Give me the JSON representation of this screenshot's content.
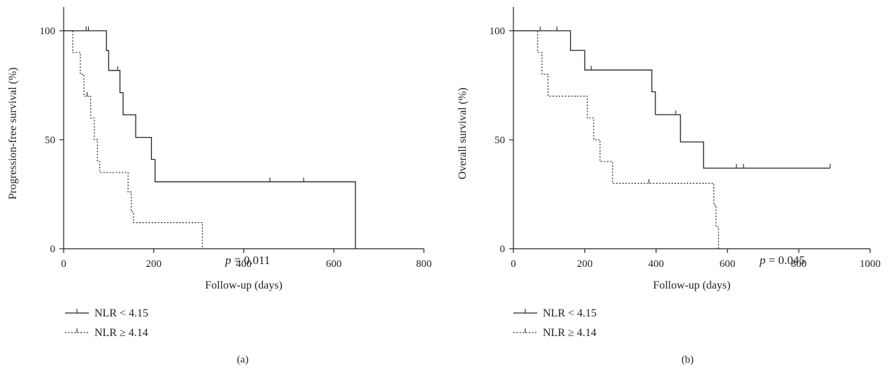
{
  "chart_data": [
    {
      "type": "line",
      "panel_label": "(a)",
      "xlabel": "Follow-up (days)",
      "ylabel": "Progression-free survival (%)",
      "xlim": [
        0,
        800
      ],
      "ylim": [
        0,
        100
      ],
      "xticks": [
        0,
        200,
        400,
        600,
        800
      ],
      "yticks": [
        0,
        50,
        100
      ],
      "annotation": {
        "italic": "p",
        "rest": " = 0.011"
      },
      "series": [
        {
          "name": "NLR < 4.15",
          "style": "solid",
          "steps": [
            [
              0,
              100
            ],
            [
              95,
              100
            ],
            [
              95,
              90.9
            ],
            [
              100,
              90.9
            ],
            [
              100,
              81.8
            ],
            [
              125,
              81.8
            ],
            [
              125,
              71.6
            ],
            [
              132,
              71.6
            ],
            [
              132,
              61.4
            ],
            [
              160,
              61.4
            ],
            [
              160,
              51.1
            ],
            [
              195,
              51.1
            ],
            [
              195,
              40.9
            ],
            [
              203,
              40.9
            ],
            [
              203,
              30.7
            ],
            [
              648,
              30.7
            ],
            [
              648,
              0
            ]
          ],
          "censored": [
            [
              50,
              100
            ],
            [
              55,
              100
            ],
            [
              120,
              81.8
            ],
            [
              458,
              30.7
            ],
            [
              533,
              30.7
            ]
          ]
        },
        {
          "name": "NLR ≥ 4.14",
          "style": "dotted",
          "steps": [
            [
              0,
              100
            ],
            [
              20,
              100
            ],
            [
              20,
              90
            ],
            [
              37,
              90
            ],
            [
              37,
              80
            ],
            [
              45,
              80
            ],
            [
              45,
              70
            ],
            [
              60,
              70
            ],
            [
              60,
              60
            ],
            [
              68,
              60
            ],
            [
              68,
              50
            ],
            [
              75,
              50
            ],
            [
              75,
              40
            ],
            [
              80,
              40
            ],
            [
              80,
              35
            ],
            [
              143,
              35
            ],
            [
              143,
              26
            ],
            [
              150,
              26
            ],
            [
              150,
              17
            ],
            [
              155,
              17
            ],
            [
              155,
              12
            ],
            [
              308,
              12
            ],
            [
              308,
              0
            ]
          ],
          "censored": [
            [
              52,
              70
            ]
          ]
        }
      ],
      "legend_position": "bottom-left"
    },
    {
      "type": "line",
      "panel_label": "(b)",
      "xlabel": "Follow-up (days)",
      "ylabel": "Overall survival (%)",
      "xlim": [
        0,
        1000
      ],
      "ylim": [
        0,
        100
      ],
      "xticks": [
        0,
        200,
        400,
        600,
        800,
        1000
      ],
      "yticks": [
        0,
        50,
        100
      ],
      "annotation": {
        "italic": "p",
        "rest": " = 0.045"
      },
      "series": [
        {
          "name": "NLR < 4.15",
          "style": "solid",
          "steps": [
            [
              0,
              100
            ],
            [
              160,
              100
            ],
            [
              160,
              91
            ],
            [
              200,
              91
            ],
            [
              200,
              82
            ],
            [
              388,
              82
            ],
            [
              388,
              72
            ],
            [
              398,
              72
            ],
            [
              398,
              61.5
            ],
            [
              468,
              61.5
            ],
            [
              468,
              49
            ],
            [
              533,
              49
            ],
            [
              533,
              37
            ],
            [
              888,
              37
            ]
          ],
          "censored": [
            [
              75,
              100
            ],
            [
              122,
              100
            ],
            [
              218,
              82
            ],
            [
              455,
              61.5
            ],
            [
              625,
              37
            ],
            [
              645,
              37
            ],
            [
              888,
              37
            ]
          ]
        },
        {
          "name": "NLR ≥ 4.14",
          "style": "dotted",
          "steps": [
            [
              0,
              100
            ],
            [
              68,
              100
            ],
            [
              68,
              90
            ],
            [
              80,
              90
            ],
            [
              80,
              80
            ],
            [
              97,
              80
            ],
            [
              97,
              70
            ],
            [
              207,
              70
            ],
            [
              207,
              60
            ],
            [
              225,
              60
            ],
            [
              225,
              50
            ],
            [
              243,
              50
            ],
            [
              243,
              40
            ],
            [
              278,
              40
            ],
            [
              278,
              30
            ],
            [
              562,
              30
            ],
            [
              562,
              20
            ],
            [
              568,
              20
            ],
            [
              568,
              10
            ],
            [
              575,
              10
            ],
            [
              575,
              0
            ]
          ],
          "censored": [
            [
              380,
              30
            ]
          ]
        }
      ],
      "legend_position": "bottom-left"
    }
  ]
}
